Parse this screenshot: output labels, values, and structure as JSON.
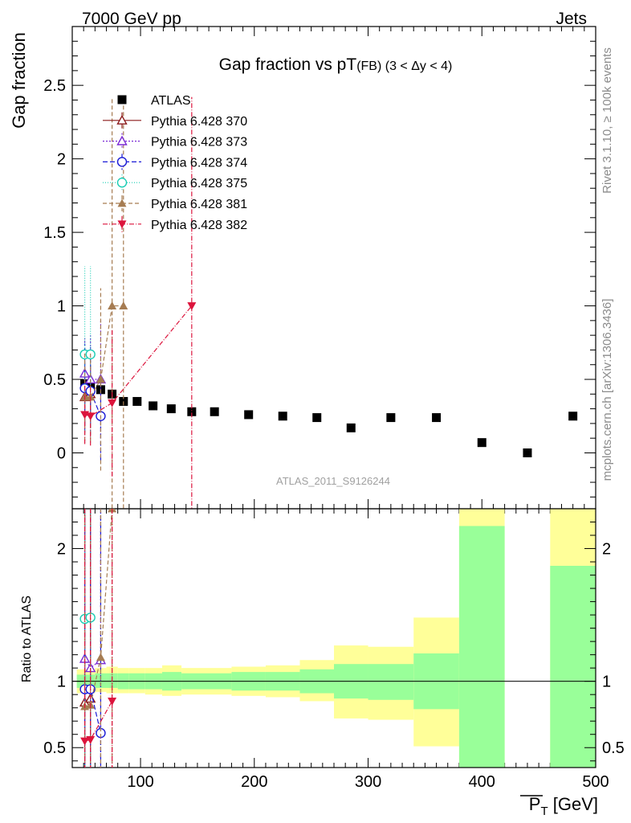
{
  "header": {
    "left": "7000 GeV pp",
    "right": "Jets"
  },
  "side_labels": {
    "rivet": "Rivet 3.1.10, ≥ 100k events",
    "mcplots": "mcplots.cern.ch [arXiv:1306.3436]"
  },
  "chart_data": [
    {
      "type": "scatter",
      "title": "Gap fraction vs pT(FB) (3 < Δy < 4)",
      "title_main": "Gap fraction vs pT",
      "title_sub": "(FB) (3 < Δy < 4)",
      "ylabel": "Gap fraction",
      "watermark": "ATLAS_2011_S9126244",
      "xlim": [
        40,
        500
      ],
      "ylim": [
        -0.38,
        2.9
      ],
      "x_ticks": [
        100,
        200,
        300,
        400,
        500
      ],
      "y_ticks": [
        0,
        0.5,
        1,
        1.5,
        2,
        2.5
      ],
      "y_tick_labels": [
        "0",
        "0.5",
        "1",
        "1.5",
        "2",
        "2.5"
      ],
      "legend_position": "top-left",
      "series": [
        {
          "name": "ATLAS",
          "color": "#000000",
          "marker": "square",
          "x": [
            51,
            56,
            65,
            75,
            85,
            97,
            111,
            127,
            145,
            165,
            195,
            225,
            255,
            285,
            320,
            360,
            400,
            440,
            480
          ],
          "y": [
            0.47,
            0.45,
            0.43,
            0.4,
            0.35,
            0.35,
            0.32,
            0.3,
            0.28,
            0.28,
            0.26,
            0.25,
            0.24,
            0.17,
            0.24,
            0.24,
            0.07,
            0.0,
            0.25
          ]
        },
        {
          "name": "Pythia 6.428 370",
          "color": "#8b1a1a",
          "marker": "triangle-open",
          "dash": "",
          "x": [
            51,
            56
          ],
          "y": [
            0.38,
            0.4
          ],
          "yerr": [
            0.2,
            0.2
          ]
        },
        {
          "name": "Pythia 6.428 373",
          "color": "#7b2bd6",
          "marker": "triangle-open",
          "dash": "2,2",
          "x": [
            51,
            56,
            65
          ],
          "y": [
            0.54,
            0.5,
            0.5
          ],
          "yerr": [
            0.25,
            0.3,
            0.4
          ]
        },
        {
          "name": "Pythia 6.428 374",
          "color": "#1a1ad6",
          "marker": "circle-open",
          "dash": "6,3",
          "x": [
            51,
            56,
            65
          ],
          "y": [
            0.44,
            0.42,
            0.25
          ],
          "yerr": [
            0.3,
            0.3,
            0.3
          ]
        },
        {
          "name": "Pythia 6.428 375",
          "color": "#1acdb4",
          "marker": "circle-open",
          "dash": "1,2",
          "x": [
            51,
            56
          ],
          "y": [
            0.67,
            0.67
          ],
          "yerr": [
            0.6,
            0.6
          ]
        },
        {
          "name": "Pythia 6.428 381",
          "color": "#a67c52",
          "marker": "triangle-filled",
          "dash": "5,3",
          "x": [
            51,
            56,
            65,
            75,
            85
          ],
          "y": [
            0.38,
            0.38,
            0.5,
            1.0,
            1.0
          ],
          "yerr": [
            0.3,
            0.3,
            0.62,
            1.42,
            1.42
          ]
        },
        {
          "name": "Pythia 6.428 382",
          "color": "#dc143c",
          "marker": "triangledown-filled",
          "dash": "6,2,1,2",
          "x": [
            51,
            56,
            75,
            145
          ],
          "y": [
            0.26,
            0.25,
            0.34,
            1.0
          ],
          "yerr": [
            0.2,
            0.2,
            0.5,
            1.42
          ]
        }
      ]
    },
    {
      "type": "ratio",
      "ylabel": "Ratio to ATLAS",
      "xlabel": "P̅T [GeV]",
      "xlabel_main": "P",
      "xlabel_sub": "T",
      "xlabel_unit": " [GeV]",
      "xlim": [
        40,
        500
      ],
      "ylim": [
        0.35,
        2.3
      ],
      "y_ticks": [
        0.5,
        1,
        2
      ],
      "y_tick_labels": [
        "0.5",
        "1",
        "2"
      ],
      "x_tick_labels": [
        "100",
        "200",
        "300",
        "400",
        "500"
      ],
      "bands": [
        {
          "x0": 44,
          "x1": 60,
          "y_lo": 0.91,
          "y_hi": 1.09,
          "g_lo": 0.95,
          "g_hi": 1.05
        },
        {
          "x0": 60,
          "x1": 70,
          "y_lo": 0.92,
          "y_hi": 1.1,
          "g_lo": 0.95,
          "g_hi": 1.06
        },
        {
          "x0": 70,
          "x1": 80,
          "y_lo": 0.91,
          "y_hi": 1.11,
          "g_lo": 0.95,
          "g_hi": 1.06
        },
        {
          "x0": 80,
          "x1": 90,
          "y_lo": 0.91,
          "y_hi": 1.1,
          "g_lo": 0.94,
          "g_hi": 1.06
        },
        {
          "x0": 90,
          "x1": 104,
          "y_lo": 0.91,
          "y_hi": 1.1,
          "g_lo": 0.94,
          "g_hi": 1.06
        },
        {
          "x0": 104,
          "x1": 119,
          "y_lo": 0.9,
          "y_hi": 1.1,
          "g_lo": 0.94,
          "g_hi": 1.06
        },
        {
          "x0": 119,
          "x1": 136,
          "y_lo": 0.89,
          "y_hi": 1.12,
          "g_lo": 0.93,
          "g_hi": 1.07
        },
        {
          "x0": 136,
          "x1": 155,
          "y_lo": 0.9,
          "y_hi": 1.1,
          "g_lo": 0.94,
          "g_hi": 1.06
        },
        {
          "x0": 155,
          "x1": 180,
          "y_lo": 0.9,
          "y_hi": 1.1,
          "g_lo": 0.94,
          "g_hi": 1.06
        },
        {
          "x0": 180,
          "x1": 210,
          "y_lo": 0.89,
          "y_hi": 1.11,
          "g_lo": 0.93,
          "g_hi": 1.07
        },
        {
          "x0": 210,
          "x1": 240,
          "y_lo": 0.88,
          "y_hi": 1.12,
          "g_lo": 0.93,
          "g_hi": 1.07
        },
        {
          "x0": 240,
          "x1": 270,
          "y_lo": 0.85,
          "y_hi": 1.16,
          "g_lo": 0.91,
          "g_hi": 1.09
        },
        {
          "x0": 270,
          "x1": 300,
          "y_lo": 0.72,
          "y_hi": 1.27,
          "g_lo": 0.87,
          "g_hi": 1.13
        },
        {
          "x0": 300,
          "x1": 340,
          "y_lo": 0.71,
          "y_hi": 1.26,
          "g_lo": 0.86,
          "g_hi": 1.13
        },
        {
          "x0": 340,
          "x1": 380,
          "y_lo": 0.51,
          "y_hi": 1.48,
          "g_lo": 0.79,
          "g_hi": 1.21
        },
        {
          "x0": 380,
          "x1": 420,
          "y_lo": 0.35,
          "y_hi": 2.3,
          "g_lo": 0.35,
          "g_hi": 2.17
        },
        {
          "x0": 460,
          "x1": 500,
          "y_lo": 0.35,
          "y_hi": 2.3,
          "g_lo": 0.35,
          "g_hi": 1.87
        }
      ],
      "series": [
        {
          "name": "Pythia 6.428 370",
          "x": [
            51,
            56
          ],
          "y": [
            0.84,
            0.87
          ]
        },
        {
          "name": "Pythia 6.428 373",
          "x": [
            51,
            56,
            65
          ],
          "y": [
            1.17,
            1.1,
            1.16
          ]
        },
        {
          "name": "Pythia 6.428 374",
          "x": [
            51,
            56,
            65
          ],
          "y": [
            0.94,
            0.94,
            0.61
          ]
        },
        {
          "name": "Pythia 6.428 375",
          "x": [
            51,
            56
          ],
          "y": [
            1.47,
            1.48
          ]
        },
        {
          "name": "Pythia 6.428 381",
          "x": [
            51,
            56,
            65,
            75
          ],
          "y": [
            0.81,
            0.82,
            1.18,
            2.3
          ]
        },
        {
          "name": "Pythia 6.428 382",
          "x": [
            51,
            56,
            75
          ],
          "y": [
            0.55,
            0.56,
            0.85
          ]
        }
      ]
    }
  ]
}
